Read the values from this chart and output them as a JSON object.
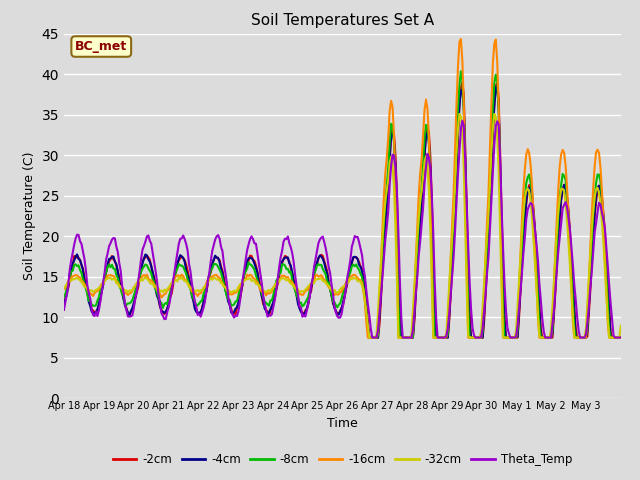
{
  "title": "Soil Temperatures Set A",
  "xlabel": "Time",
  "ylabel": "Soil Temperature (C)",
  "ylim": [
    0,
    45
  ],
  "yticks": [
    0,
    5,
    10,
    15,
    20,
    25,
    30,
    35,
    40,
    45
  ],
  "annotation_text": "BC_met",
  "bg_color": "#f0f0f0",
  "legend_entries": [
    "-2cm",
    "-4cm",
    "-8cm",
    "-16cm",
    "-32cm",
    "Theta_Temp"
  ],
  "line_colors": [
    "#dd0000",
    "#00008b",
    "#00bb00",
    "#ff8800",
    "#cccc00",
    "#9900cc"
  ],
  "line_widths": [
    1.5,
    1.5,
    1.5,
    1.5,
    1.5,
    1.5
  ],
  "x_tick_days": [
    18,
    19,
    20,
    21,
    22,
    23,
    24,
    25,
    26,
    27,
    28,
    29,
    30,
    31,
    32,
    33
  ],
  "x_tick_labels": [
    "Apr 18",
    "Apr 19",
    "Apr 20",
    "Apr 21",
    "Apr 22",
    "Apr 23",
    "Apr 24",
    "Apr 25",
    "Apr 26",
    "Apr 27",
    "Apr 28",
    "Apr 29",
    "Apr 30",
    "May 1",
    "May 2",
    "May 3"
  ]
}
